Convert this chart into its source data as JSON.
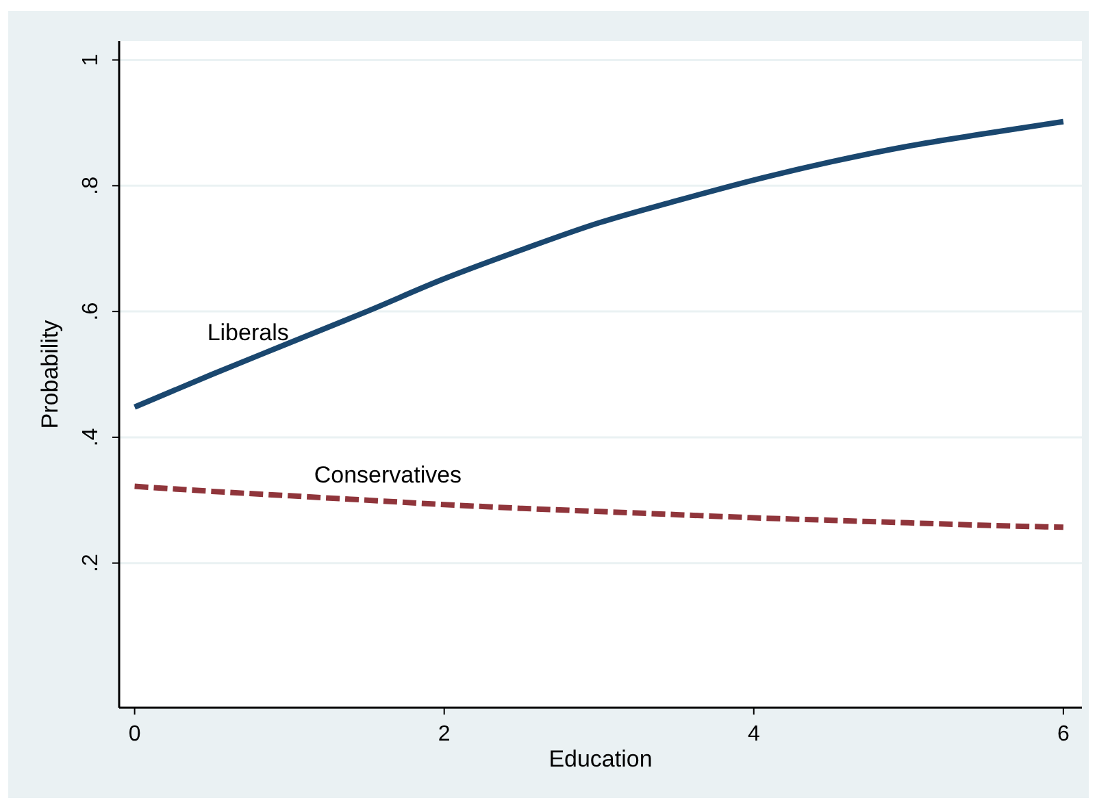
{
  "chart_data": {
    "type": "line",
    "xlabel": "Education",
    "ylabel": "Probability",
    "x": [
      0,
      0.5,
      1,
      1.5,
      2,
      2.5,
      3,
      3.5,
      4,
      4.5,
      5,
      5.5,
      6
    ],
    "series": [
      {
        "name": "Liberals",
        "color": "#1a476f",
        "line_style": "solid",
        "values": [
          0.448,
          0.5,
          0.55,
          0.6,
          0.652,
          0.698,
          0.741,
          0.776,
          0.809,
          0.838,
          0.863,
          0.883,
          0.902
        ]
      },
      {
        "name": "Conservatives",
        "color": "#90353b",
        "line_style": "dashed",
        "values": [
          0.322,
          0.314,
          0.307,
          0.3,
          0.293,
          0.287,
          0.282,
          0.277,
          0.272,
          0.268,
          0.264,
          0.26,
          0.257
        ]
      }
    ],
    "xlim": [
      -0.1,
      6.12
    ],
    "ylim": [
      -0.03,
      1.03
    ],
    "xticks": [
      0,
      2,
      4,
      6
    ],
    "yticks": [
      {
        "value": 0.2,
        "label": ".2"
      },
      {
        "value": 0.4,
        "label": ".4"
      },
      {
        "value": 0.6,
        "label": ".6"
      },
      {
        "value": 0.8,
        "label": ".8"
      },
      {
        "value": 1,
        "label": "1"
      }
    ],
    "grid": "y",
    "marker": "none"
  }
}
